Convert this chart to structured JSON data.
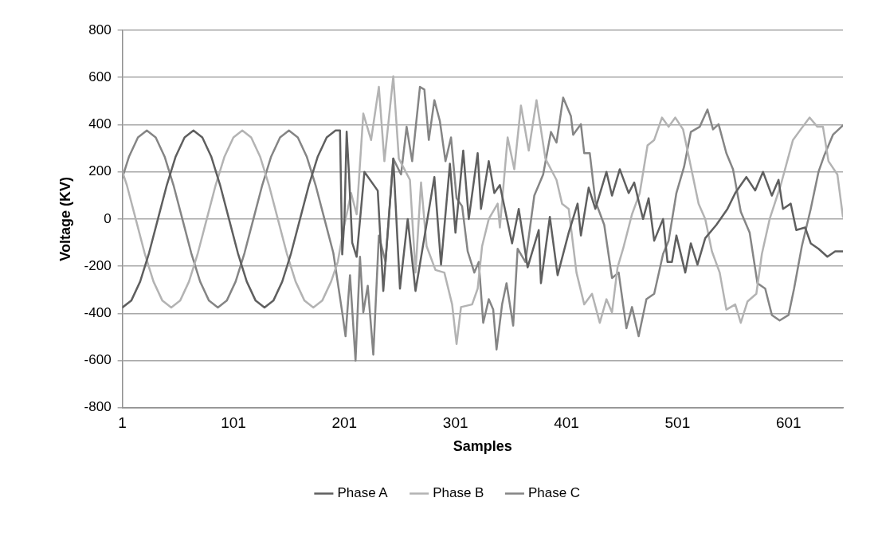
{
  "chart_data": {
    "type": "line",
    "xlabel": "Samples",
    "ylabel": "Voltage (KV)",
    "xlim": [
      1,
      650
    ],
    "xticks": [
      1,
      101,
      201,
      301,
      401,
      501,
      601
    ],
    "ylim": [
      -800,
      800
    ],
    "yticks": [
      -800,
      -600,
      -400,
      -200,
      0,
      200,
      400,
      600,
      800
    ],
    "grid": "y",
    "legend": "bottom",
    "marker": "none",
    "line_style": "solid",
    "series": [
      {
        "name": "Phase A",
        "color": "#5f5f5f",
        "x": [
          1,
          9,
          17,
          25,
          33,
          41,
          49,
          57,
          65,
          73,
          81,
          89,
          97,
          105,
          113,
          121,
          129,
          137,
          145,
          153,
          161,
          169,
          177,
          185,
          193,
          197,
          199,
          201,
          203,
          205,
          208,
          212,
          219,
          231,
          236,
          245,
          251,
          258,
          265,
          282,
          288,
          296,
          301,
          308,
          313,
          321,
          324,
          331,
          336,
          341,
          352,
          358,
          366,
          376,
          378,
          386,
          393,
          403,
          411,
          414,
          421,
          427,
          437,
          442,
          449,
          457,
          462,
          466,
          470,
          475,
          480,
          488,
          492,
          496,
          500,
          508,
          513,
          519,
          526,
          536,
          546,
          553,
          563,
          571,
          578,
          586,
          592,
          596,
          603,
          608,
          616,
          621,
          628,
          636,
          643,
          650
        ],
        "values": [
          -375,
          -346,
          -265,
          -144,
          0,
          144,
          265,
          346,
          375,
          346,
          265,
          144,
          0,
          -144,
          -265,
          -346,
          -375,
          -346,
          -265,
          -144,
          0,
          144,
          265,
          346,
          375,
          375,
          -150,
          0,
          370,
          200,
          -100,
          -160,
          200,
          120,
          -305,
          256,
          -295,
          0,
          -305,
          178,
          -193,
          234,
          -58,
          290,
          0,
          279,
          43,
          245,
          110,
          144,
          -103,
          43,
          -205,
          -47,
          -272,
          9,
          -238,
          -58,
          65,
          -70,
          133,
          43,
          200,
          99,
          211,
          110,
          155,
          76,
          0,
          88,
          -92,
          0,
          -182,
          -182,
          -70,
          -227,
          -103,
          -193,
          -81,
          -25,
          43,
          110,
          178,
          121,
          200,
          99,
          166,
          43,
          65,
          -47,
          -36,
          -103,
          -126,
          -160,
          -137,
          -137
        ]
      },
      {
        "name": "Phase B",
        "color": "#b3b3b3",
        "x": [
          1,
          5,
          13,
          21,
          29,
          37,
          45,
          53,
          61,
          69,
          77,
          85,
          93,
          101,
          109,
          117,
          125,
          133,
          141,
          149,
          157,
          165,
          173,
          181,
          189,
          195,
          200,
          207,
          212,
          218,
          225,
          232,
          237,
          245,
          250,
          260,
          265,
          270,
          275,
          283,
          291,
          298,
          302,
          306,
          316,
          321,
          325,
          331,
          339,
          341,
          348,
          354,
          360,
          367,
          374,
          382,
          392,
          397,
          403,
          410,
          417,
          424,
          431,
          437,
          442,
          447,
          452,
          460,
          467,
          474,
          480,
          487,
          493,
          499,
          506,
          512,
          520,
          526,
          532,
          539,
          545,
          553,
          558,
          564,
          572,
          577,
          584,
          594,
          605,
          612,
          620,
          627,
          632,
          637,
          645,
          650
        ],
        "values": [
          200,
          144,
          0,
          -144,
          -265,
          -346,
          -375,
          -346,
          -265,
          -144,
          0,
          144,
          265,
          346,
          375,
          346,
          265,
          144,
          0,
          -144,
          -265,
          -346,
          -375,
          -346,
          -265,
          -182,
          -47,
          110,
          20,
          447,
          335,
          560,
          245,
          605,
          256,
          166,
          -227,
          155,
          -115,
          -216,
          -227,
          -362,
          -530,
          -373,
          -362,
          -295,
          -115,
          0,
          65,
          -36,
          346,
          211,
          481,
          290,
          504,
          256,
          166,
          65,
          43,
          -227,
          -362,
          -317,
          -440,
          -340,
          -396,
          -205,
          -126,
          20,
          110,
          312,
          335,
          430,
          391,
          430,
          380,
          245,
          65,
          0,
          -137,
          -227,
          -384,
          -362,
          -440,
          -350,
          -317,
          -148,
          0,
          144,
          335,
          380,
          430,
          391,
          391,
          245,
          189,
          9
        ]
      },
      {
        "name": "Phase C",
        "color": "#858585",
        "x": [
          1,
          7,
          15,
          23,
          31,
          39,
          47,
          55,
          63,
          71,
          79,
          87,
          95,
          103,
          111,
          119,
          127,
          135,
          143,
          151,
          159,
          167,
          175,
          183,
          191,
          199,
          202,
          206,
          211,
          215,
          218,
          222,
          227,
          232,
          238,
          245,
          252,
          257,
          262,
          269,
          273,
          277,
          282,
          287,
          292,
          297,
          302,
          307,
          312,
          318,
          322,
          326,
          331,
          335,
          338,
          343,
          347,
          353,
          357,
          364,
          372,
          380,
          387,
          392,
          398,
          405,
          407,
          414,
          417,
          422,
          427,
          435,
          442,
          448,
          455,
          460,
          466,
          473,
          480,
          488,
          493,
          500,
          507,
          513,
          521,
          528,
          533,
          538,
          545,
          551,
          558,
          566,
          573,
          580,
          586,
          593,
          601,
          606,
          613,
          621,
          628,
          633,
          641,
          650
        ],
        "values": [
          176,
          265,
          346,
          375,
          346,
          265,
          144,
          0,
          -144,
          -265,
          -346,
          -375,
          -346,
          -265,
          -144,
          0,
          144,
          265,
          346,
          375,
          346,
          265,
          144,
          0,
          -144,
          -396,
          -497,
          -238,
          -600,
          -160,
          -396,
          -283,
          -575,
          -70,
          -182,
          256,
          189,
          391,
          245,
          560,
          549,
          335,
          504,
          414,
          245,
          346,
          88,
          54,
          -137,
          -227,
          -182,
          -440,
          -340,
          -384,
          -553,
          -362,
          -272,
          -452,
          -126,
          -182,
          99,
          189,
          369,
          324,
          515,
          436,
          357,
          402,
          279,
          279,
          76,
          -25,
          -250,
          -227,
          -463,
          -373,
          -497,
          -340,
          -317,
          -148,
          -92,
          110,
          223,
          369,
          391,
          464,
          380,
          402,
          279,
          211,
          31,
          -58,
          -272,
          -295,
          -407,
          -430,
          -407,
          -295,
          -115,
          43,
          200,
          267,
          357,
          397
        ]
      }
    ]
  }
}
